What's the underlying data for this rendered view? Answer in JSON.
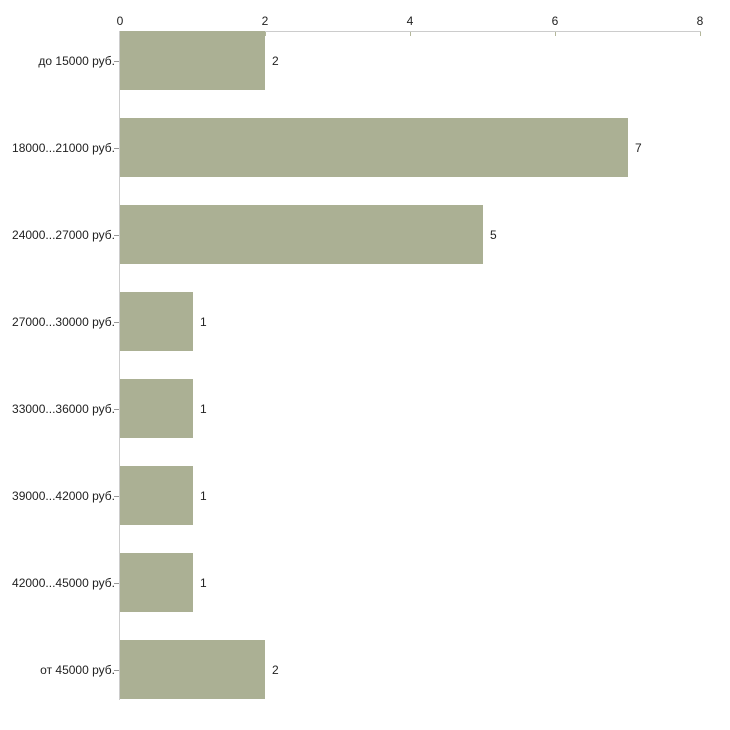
{
  "chart_data": {
    "type": "bar",
    "orientation": "horizontal",
    "title": "",
    "xlabel": "",
    "ylabel": "",
    "categories": [
      "до 15000 руб.",
      "18000...21000 руб.",
      "24000...27000 руб.",
      "27000...30000 руб.",
      "33000...36000 руб.",
      "39000...42000 руб.",
      "42000...45000 руб.",
      "от 45000 руб."
    ],
    "values": [
      2,
      7,
      5,
      1,
      1,
      1,
      1,
      2
    ],
    "value_labels": [
      "2",
      "7",
      "5",
      "1",
      "1",
      "1",
      "1",
      "2"
    ],
    "x_ticks": [
      0,
      2,
      4,
      6,
      8
    ],
    "x_tick_labels": [
      "0",
      "2",
      "4",
      "6",
      "8"
    ],
    "xlim": [
      0,
      8
    ],
    "axis_position": "top",
    "grid": false,
    "legend": false,
    "colors": {
      "bar": "#abb094",
      "axis_line": "#cccccc",
      "x_tick_mark": "#b3b79a",
      "category_tick_mark": "#999999",
      "text": "#222222",
      "background": "#ffffff"
    }
  }
}
